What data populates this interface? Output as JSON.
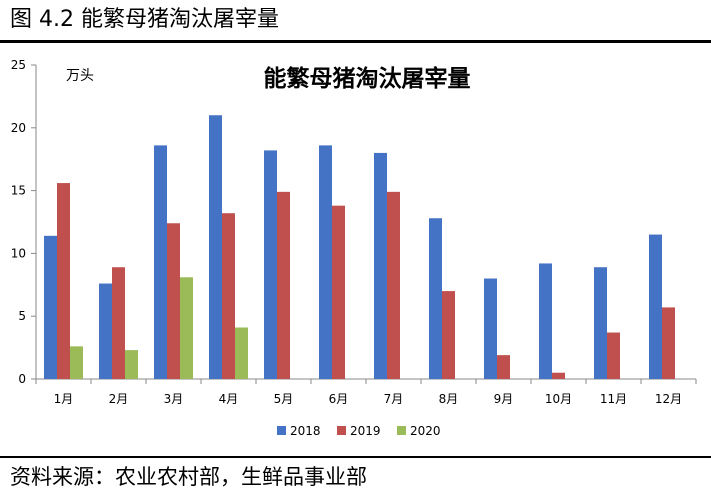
{
  "header": {
    "figure_title": "图 4.2  能繁母猪淘汰屠宰量"
  },
  "footer": {
    "source": "资料来源：农业农村部，生鲜品事业部"
  },
  "chart_data": {
    "type": "bar",
    "title": "能繁母猪淘汰屠宰量",
    "unit_label": "万头",
    "categories": [
      "1月",
      "2月",
      "3月",
      "4月",
      "5月",
      "6月",
      "7月",
      "8月",
      "9月",
      "10月",
      "11月",
      "12月"
    ],
    "series": [
      {
        "name": "2018",
        "color": "#4472C4",
        "values": [
          11.4,
          7.6,
          18.6,
          21.0,
          18.2,
          18.6,
          18.0,
          12.8,
          8.0,
          9.2,
          8.9,
          11.5
        ]
      },
      {
        "name": "2019",
        "color": "#C0504D",
        "values": [
          15.6,
          8.9,
          12.4,
          13.2,
          14.9,
          13.8,
          14.9,
          7.0,
          1.9,
          0.5,
          3.7,
          5.7
        ]
      },
      {
        "name": "2020",
        "color": "#9BBB59",
        "values": [
          2.6,
          2.3,
          8.1,
          4.1,
          null,
          null,
          null,
          null,
          null,
          null,
          null,
          null
        ]
      }
    ],
    "ylim": [
      0,
      25
    ],
    "yticks": [
      0,
      5,
      10,
      15,
      20,
      25
    ],
    "legend_position": "bottom",
    "grid": false
  }
}
